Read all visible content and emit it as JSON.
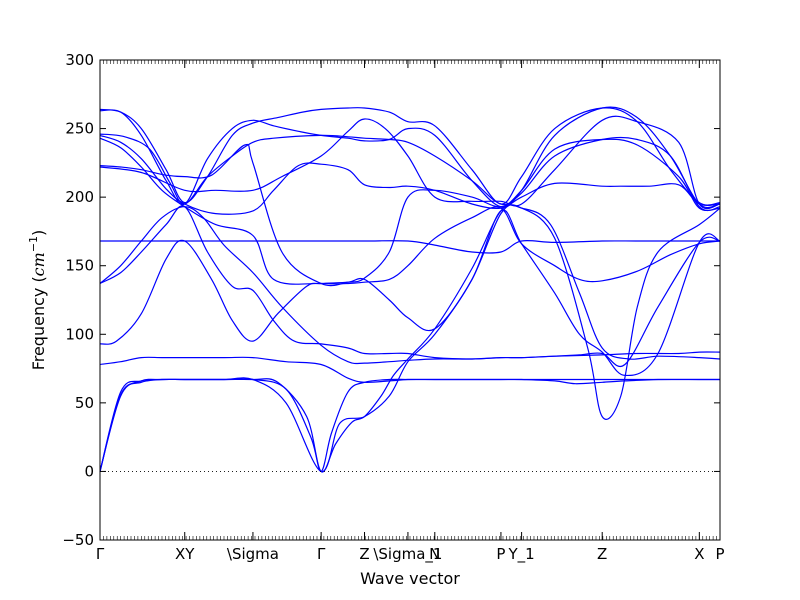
{
  "chart_data": {
    "type": "line",
    "title": "",
    "xlabel": "Wave vector",
    "ylabel": "Frequency (",
    "ylabel_unit": "cm",
    "ylabel_unit_exp": "−1",
    "ylabel_close": ")",
    "ylim": [
      -50,
      300
    ],
    "yticks": [
      -50,
      0,
      50,
      100,
      150,
      200,
      250,
      300
    ],
    "ytick_labels": [
      "−50",
      "0",
      "50",
      "100",
      "150",
      "200",
      "250",
      "300"
    ],
    "xlim": [
      0,
      15
    ],
    "xticks": [
      {
        "label": "Γ",
        "x": 0
      },
      {
        "label": "XY",
        "x": 2.05
      },
      {
        "label": "\\Sigma",
        "x": 3.7
      },
      {
        "label": "Γ",
        "x": 5.35
      },
      {
        "label": "Z",
        "x": 6.4
      },
      {
        "label": "\\Sigma_1",
        "x": 7.45
      },
      {
        "label": "N",
        "x": 8.1
      },
      {
        "label": "P",
        "x": 9.7
      },
      {
        "label": "Y_1",
        "x": 10.2
      },
      {
        "label": "Z",
        "x": 12.15
      },
      {
        "label": "X",
        "x": 14.5
      },
      {
        "label": "P",
        "x": 15
      }
    ],
    "zero_line": true,
    "line_color": "#0000ff",
    "series": [
      {
        "x": [
          0,
          0.5,
          1,
          1.5,
          2.05,
          3,
          3.7,
          4.5,
          5.1,
          5.35,
          5.6,
          6,
          6.4,
          7,
          7.45,
          8.1,
          9,
          9.7,
          10.2,
          11,
          11.5,
          12.15,
          12.7,
          13.5,
          14.5,
          15
        ],
        "y": [
          0,
          58,
          66,
          67,
          67,
          67,
          67,
          60,
          25,
          0,
          28,
          58,
          65,
          67,
          67,
          67,
          67,
          67,
          67,
          66,
          64,
          65,
          66,
          67,
          67,
          67
        ]
      },
      {
        "x": [
          0,
          0.5,
          1,
          1.5,
          2.05,
          3,
          3.7,
          4.3,
          5.0,
          5.35,
          5.7,
          6.1,
          6.4,
          6.8,
          7.1,
          7.45,
          8.1,
          9,
          9.7,
          10.2,
          10.9,
          11.6,
          12.15,
          12.8,
          13.5,
          14.5,
          15
        ],
        "y": [
          0,
          56,
          65,
          67,
          67,
          67,
          67,
          65,
          40,
          0,
          20,
          36,
          40,
          55,
          70,
          82,
          104,
          148,
          190,
          192,
          180,
          130,
          90,
          82,
          84,
          83,
          82
        ]
      },
      {
        "x": [
          0,
          0.5,
          1,
          1.5,
          2.05,
          3,
          3.7,
          4.5,
          5.35,
          5.8,
          6.4,
          7,
          7.45,
          8.1,
          9,
          9.7,
          10.2,
          11,
          11.8,
          12.15,
          12.6,
          13,
          13.5,
          14.5,
          15
        ],
        "y": [
          0,
          55,
          66,
          67,
          67,
          67,
          67,
          50,
          0,
          35,
          40,
          55,
          80,
          100,
          140,
          188,
          192,
          170,
          90,
          40,
          55,
          120,
          160,
          180,
          192
        ]
      },
      {
        "x": [
          0,
          0.5,
          1,
          1.5,
          2.05,
          3,
          3.7,
          4.5,
          5.35,
          6,
          6.4,
          7,
          7.45,
          8.1,
          9,
          9.7,
          10.2,
          11,
          12.15,
          13,
          14,
          14.5,
          15
        ],
        "y": [
          78,
          80,
          83,
          83,
          83,
          83,
          83,
          80,
          78,
          68,
          65,
          66,
          67,
          67,
          67,
          67,
          67,
          67,
          67,
          67,
          67,
          67,
          67
        ]
      },
      {
        "x": [
          0,
          0.4,
          1,
          1.6,
          2.05,
          2.7,
          3.2,
          3.7,
          4.3,
          5.0,
          5.35,
          6,
          6.4,
          7,
          7.45,
          8.1,
          9,
          9.7,
          10.2,
          11,
          11.6,
          12.15,
          12.7,
          13.5,
          14.5,
          15
        ],
        "y": [
          93,
          95,
          115,
          155,
          168,
          140,
          110,
          95,
          115,
          135,
          137,
          138,
          140,
          125,
          112,
          104,
          140,
          190,
          166,
          130,
          100,
          87,
          70,
          86,
          167,
          168
        ]
      },
      {
        "x": [
          0,
          0.5,
          1,
          1.6,
          2.05,
          2.6,
          3.2,
          3.7,
          4.2,
          4.7,
          5.35,
          6,
          6.4,
          7,
          7.45,
          8.1,
          9,
          9.7,
          10.2,
          11,
          11.6,
          12.15,
          12.7,
          13.5,
          14.5,
          15
        ],
        "y": [
          137,
          145,
          160,
          180,
          193,
          160,
          135,
          132,
          110,
          95,
          93,
          90,
          86,
          86,
          86,
          83,
          82,
          83,
          83,
          84,
          85,
          86,
          78,
          120,
          167,
          168
        ]
      },
      {
        "x": [
          0,
          0.5,
          1,
          1.5,
          2.05,
          2.5,
          3,
          3.7,
          4.4,
          5.35,
          6,
          6.4,
          7,
          7.45,
          8.1,
          9,
          9.7,
          10.2,
          11,
          12.15,
          13,
          14,
          14.5,
          15
        ],
        "y": [
          137,
          150,
          168,
          185,
          193,
          185,
          165,
          145,
          120,
          92,
          80,
          79,
          80,
          81,
          82,
          82,
          83,
          83,
          84,
          85,
          86,
          86,
          87,
          87
        ]
      },
      {
        "x": [
          0,
          1,
          2.05,
          3,
          3.7,
          4.5,
          5.35,
          6.4,
          7.45,
          8.1,
          9,
          9.7,
          10.2,
          11,
          12.15,
          13,
          14,
          15
        ],
        "y": [
          168,
          168,
          168,
          168,
          168,
          168,
          168,
          168,
          168,
          165,
          160,
          160,
          168,
          167,
          168,
          168,
          168,
          168
        ]
      },
      {
        "x": [
          0,
          0.5,
          1,
          1.5,
          2.05,
          2.8,
          3.7,
          4.2,
          5.35,
          6,
          6.4,
          7,
          7.45,
          8.1,
          9,
          9.7,
          10.2,
          11,
          11.6,
          12.15,
          13,
          13.8,
          14.5,
          15
        ],
        "y": [
          243,
          236,
          222,
          205,
          193,
          180,
          172,
          140,
          137,
          137,
          138,
          140,
          150,
          170,
          185,
          192,
          166,
          150,
          140,
          139,
          146,
          158,
          166,
          168
        ]
      },
      {
        "x": [
          0,
          0.5,
          1,
          1.6,
          2.05,
          2.8,
          3.7,
          4.2,
          4.8,
          5.35,
          6,
          6.4,
          7,
          7.45,
          8.1,
          9,
          9.7,
          10.2,
          11,
          12.15,
          12.6,
          13.3,
          14,
          14.5,
          15
        ],
        "y": [
          245,
          240,
          228,
          206,
          195,
          188,
          190,
          205,
          223,
          224,
          220,
          209,
          207,
          208,
          205,
          195,
          192,
          200,
          210,
          208,
          208,
          208,
          209,
          195,
          195
        ]
      },
      {
        "x": [
          0,
          0.5,
          1,
          1.6,
          2.05,
          2.7,
          3.5,
          3.7,
          4.4,
          5.35,
          6,
          6.4,
          7,
          7.45,
          8.1,
          9,
          9.7,
          10.2,
          11,
          12.15,
          13,
          14,
          14.5,
          15
        ],
        "y": [
          223,
          222,
          220,
          216,
          215,
          216,
          238,
          225,
          160,
          137,
          138,
          141,
          160,
          200,
          205,
          200,
          193,
          205,
          235,
          242,
          238,
          215,
          192,
          192
        ]
      },
      {
        "x": [
          0,
          0.6,
          1.2,
          1.7,
          2.05,
          2.6,
          3.2,
          3.7,
          4.2,
          5.35,
          6,
          6.4,
          7,
          7.45,
          8.1,
          9,
          9.7,
          10.2,
          11,
          12.15,
          13,
          13.8,
          14.5,
          15
        ],
        "y": [
          246,
          244,
          235,
          210,
          195,
          215,
          230,
          240,
          243,
          245,
          244,
          243,
          242,
          240,
          230,
          212,
          195,
          203,
          230,
          242,
          242,
          230,
          193,
          193
        ]
      },
      {
        "x": [
          0,
          0.5,
          1,
          1.6,
          2.05,
          2.6,
          3.2,
          3.7,
          4.2,
          4.8,
          5.35,
          6,
          6.4,
          7,
          7.45,
          8.1,
          9,
          9.7,
          10.2,
          11,
          12.15,
          13,
          13.8,
          14.5,
          15
        ],
        "y": [
          263,
          262,
          245,
          212,
          195,
          228,
          250,
          256,
          252,
          248,
          245,
          243,
          241,
          242,
          250,
          245,
          212,
          193,
          205,
          245,
          265,
          258,
          230,
          195,
          195
        ]
      },
      {
        "x": [
          0,
          0.5,
          1,
          1.6,
          2.05,
          2.6,
          3.2,
          3.7,
          4.3,
          4.9,
          5.35,
          6,
          6.4,
          7,
          7.45,
          8.1,
          9,
          9.7,
          10.2,
          11,
          12.15,
          13,
          13.8,
          14.5,
          15
        ],
        "y": [
          264,
          262,
          250,
          220,
          196,
          215,
          245,
          254,
          258,
          262,
          264,
          265,
          265,
          262,
          255,
          252,
          220,
          195,
          215,
          250,
          265,
          255,
          220,
          196,
          196
        ]
      },
      {
        "x": [
          0,
          1,
          2.05,
          2.8,
          3.7,
          4.4,
          5.35,
          6,
          6.4,
          6.9,
          7.45,
          8.1,
          9,
          9.7,
          10.2,
          11,
          12.15,
          13,
          14,
          14.5,
          15
        ],
        "y": [
          222,
          218,
          205,
          205,
          205,
          215,
          230,
          248,
          257,
          250,
          230,
          200,
          197,
          197,
          195,
          220,
          256,
          255,
          240,
          195,
          195
        ]
      }
    ]
  }
}
